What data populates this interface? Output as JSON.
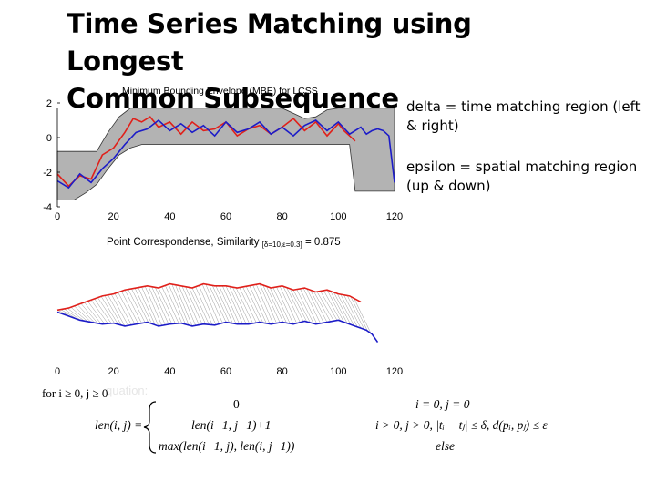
{
  "slide": {
    "title_line1": "Time Series Matching using Longest",
    "title_line2": "Common Subsequence",
    "note_delta": "delta = time matching region (left & right)",
    "note_epsilon": "epsilon = spatial matching region (up & down)"
  },
  "colors": {
    "red": "#e0201a",
    "blue": "#1c1cc8",
    "envelope": "#b3b3b3",
    "corr": "#9a9a9a"
  },
  "chart_data": [
    {
      "type": "line",
      "title": "Minimum Bounding Envelope (MBE) for LCSS",
      "xlim": [
        0,
        120
      ],
      "ylim": [
        -4,
        2
      ],
      "xticks": [
        "0",
        "20",
        "40",
        "60",
        "80",
        "100",
        "120"
      ],
      "yticks": [
        "2",
        "0",
        "-2",
        "-4"
      ],
      "series": [
        {
          "name": "red",
          "x": [
            0,
            4,
            8,
            12,
            16,
            20,
            24,
            27,
            30,
            33,
            36,
            40,
            44,
            48,
            52,
            56,
            60,
            64,
            68,
            72,
            76,
            80,
            84,
            88,
            92,
            96,
            100,
            102,
            104,
            106
          ],
          "y": [
            -2.1,
            -2.8,
            -2.2,
            -2.4,
            -1.0,
            -0.6,
            0.3,
            1.1,
            0.9,
            1.2,
            0.6,
            0.9,
            0.2,
            0.9,
            0.4,
            0.5,
            0.9,
            0.1,
            0.5,
            0.7,
            0.2,
            0.6,
            1.1,
            0.4,
            0.9,
            0.1,
            0.8,
            0.4,
            0.1,
            -0.2
          ]
        },
        {
          "name": "blue",
          "x": [
            0,
            4,
            8,
            12,
            16,
            20,
            24,
            28,
            32,
            36,
            40,
            44,
            48,
            52,
            56,
            60,
            64,
            68,
            72,
            76,
            80,
            84,
            88,
            92,
            96,
            100,
            104,
            108,
            110,
            112,
            114,
            116,
            118,
            120
          ],
          "y": [
            -2.5,
            -2.9,
            -2.1,
            -2.6,
            -1.8,
            -1.2,
            -0.4,
            0.3,
            0.5,
            1.0,
            0.4,
            0.8,
            0.3,
            0.7,
            0.1,
            0.9,
            0.3,
            0.5,
            0.9,
            0.2,
            0.6,
            0.1,
            0.7,
            1.0,
            0.4,
            0.9,
            0.2,
            0.6,
            0.2,
            0.4,
            0.5,
            0.4,
            0.1,
            -2.6
          ]
        },
        {
          "name": "envelope-upper",
          "x": [
            0,
            14,
            18,
            22,
            26,
            40,
            60,
            80,
            84,
            88,
            92,
            96,
            100,
            104,
            108,
            112,
            120
          ],
          "y": [
            -0.8,
            -0.8,
            0.3,
            1.2,
            1.7,
            1.7,
            1.7,
            1.7,
            1.4,
            1.1,
            1.2,
            1.6,
            1.7,
            1.7,
            1.7,
            1.7,
            1.7
          ]
        },
        {
          "name": "envelope-lower",
          "x": [
            0,
            6,
            10,
            14,
            18,
            22,
            26,
            30,
            40,
            60,
            90,
            104,
            106,
            120
          ],
          "y": [
            -3.6,
            -3.6,
            -3.2,
            -2.7,
            -1.8,
            -1.0,
            -0.6,
            -0.4,
            -0.4,
            -0.4,
            -0.4,
            -0.4,
            -3.1,
            -3.1
          ]
        }
      ]
    },
    {
      "type": "line",
      "title": "Point Correspondense, Similarity",
      "subscript": "[δ=10,ε=0.3]",
      "value_text": "= 0.875",
      "xlim": [
        0,
        120
      ],
      "xticks": [
        "0",
        "20",
        "40",
        "60",
        "80",
        "100",
        "120"
      ],
      "series": [
        {
          "name": "red",
          "x": [
            0,
            4,
            8,
            12,
            16,
            20,
            24,
            28,
            32,
            36,
            40,
            44,
            48,
            52,
            56,
            60,
            64,
            68,
            72,
            76,
            80,
            84,
            88,
            92,
            96,
            100,
            104,
            108
          ],
          "y": [
            0.8,
            0.9,
            1.1,
            1.3,
            1.5,
            1.6,
            1.8,
            1.9,
            2.0,
            1.9,
            2.1,
            2.0,
            1.9,
            2.1,
            2.0,
            2.0,
            1.9,
            2.0,
            2.1,
            1.9,
            2.0,
            1.8,
            1.9,
            1.7,
            1.8,
            1.6,
            1.5,
            1.2
          ]
        },
        {
          "name": "blue",
          "x": [
            0,
            4,
            8,
            12,
            16,
            20,
            24,
            28,
            32,
            36,
            40,
            44,
            48,
            52,
            56,
            60,
            64,
            68,
            72,
            76,
            80,
            84,
            88,
            92,
            96,
            100,
            104,
            106,
            108,
            110,
            112,
            114
          ],
          "y": [
            0.7,
            0.5,
            0.3,
            0.2,
            0.1,
            0.15,
            0.0,
            0.1,
            0.2,
            0.0,
            0.1,
            0.15,
            0.0,
            0.1,
            0.05,
            0.2,
            0.1,
            0.1,
            0.2,
            0.1,
            0.2,
            0.1,
            0.25,
            0.1,
            0.2,
            0.3,
            0.1,
            0.0,
            -0.1,
            -0.2,
            -0.4,
            -0.8
          ]
        }
      ]
    }
  ],
  "equation": {
    "condition": "for i ≥ 0, j ≥ 0",
    "ghost_label": "quation:",
    "lhs": "len(i, j) =",
    "case1_value": "0",
    "case2_value": "len(i−1, j−1)+1",
    "case3_value": "max(len(i−1, j), len(i, j−1))",
    "case1_cond": "i = 0, j = 0",
    "case2_cond": "i > 0, j > 0, |tᵢ − tⱼ| ≤ δ, d(pᵢ, pⱼ) ≤ ε",
    "case3_cond": "else"
  }
}
